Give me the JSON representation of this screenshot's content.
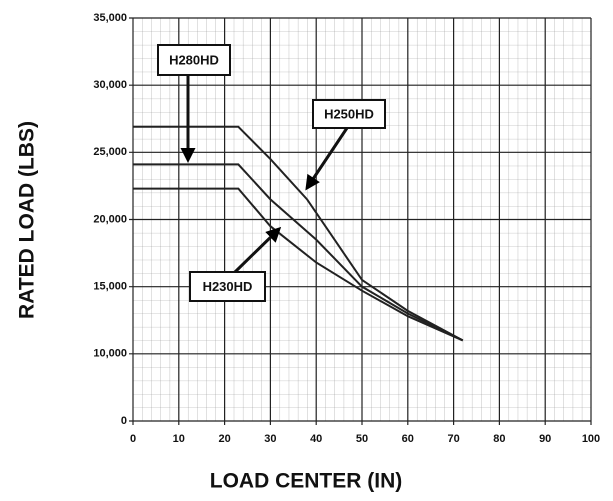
{
  "chart_data": {
    "type": "line",
    "xlabel": "LOAD CENTER (IN)",
    "ylabel": "RATED LOAD (LBS)",
    "xlim": [
      0,
      100
    ],
    "xticks": [
      0,
      10,
      20,
      30,
      40,
      50,
      60,
      70,
      80,
      90,
      100
    ],
    "ylim": [
      0,
      35000
    ],
    "y_break": [
      0,
      10000
    ],
    "yticks": [
      0,
      {
        "value": 10000,
        "label": "10,000"
      },
      {
        "value": 15000,
        "label": "15,000"
      },
      {
        "value": 20000,
        "label": "20,000"
      },
      {
        "value": 25000,
        "label": "25,000"
      },
      {
        "value": 30000,
        "label": "30,000"
      },
      {
        "value": 35000,
        "label": "35,000"
      }
    ],
    "grid": true,
    "series": [
      {
        "name": "H280HD",
        "color": "#222222",
        "x": [
          0,
          23,
          30,
          38,
          45,
          50,
          60,
          72
        ],
        "values": [
          26900,
          26900,
          24500,
          21500,
          18000,
          15500,
          13200,
          11000
        ]
      },
      {
        "name": "H250HD",
        "color": "#222222",
        "x": [
          0,
          23,
          30,
          40,
          50,
          60,
          72
        ],
        "values": [
          24100,
          24100,
          21500,
          18500,
          15000,
          13000,
          11000
        ]
      },
      {
        "name": "H230HD",
        "color": "#222222",
        "x": [
          0,
          23,
          30,
          40,
          50,
          60,
          72
        ],
        "values": [
          22300,
          22300,
          19500,
          16800,
          14700,
          12800,
          11000
        ]
      }
    ]
  }
}
